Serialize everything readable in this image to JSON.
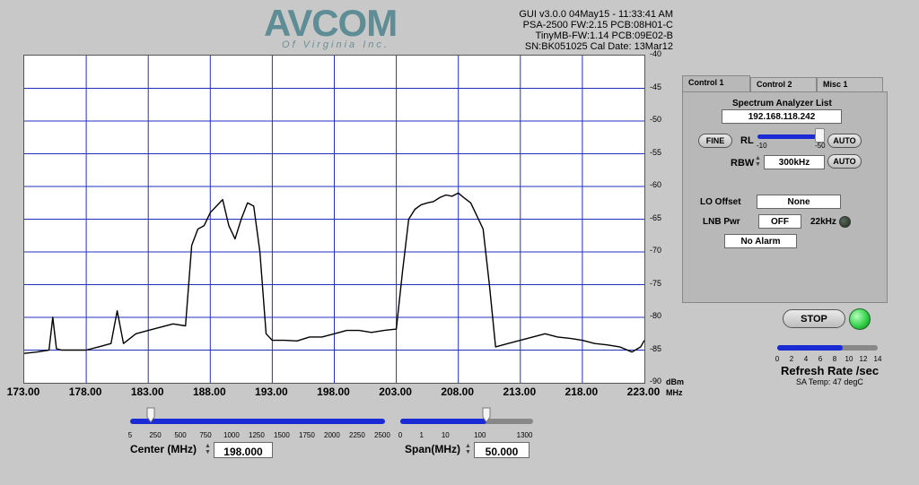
{
  "logo": {
    "brand": "AVCOM",
    "sub": "Of Virginia Inc."
  },
  "info": {
    "lines": [
      "GUI v3.0.0  04May15 - 11:33:41 AM",
      "PSA-2500 FW:2.15 PCB:08H01-C",
      "TinyMB-FW:1.14  PCB:09E02-B",
      "SN:BK051025  Cal Date: 13Mar12"
    ]
  },
  "plot": {
    "yticks": [
      "-40",
      "-45",
      "-50",
      "-55",
      "-60",
      "-65",
      "-70",
      "-75",
      "-80",
      "-85",
      "-90"
    ],
    "yunit": "dBm",
    "xticks": [
      "173.00",
      "178.00",
      "183.00",
      "188.00",
      "193.00",
      "198.00",
      "203.00",
      "208.00",
      "213.00",
      "218.00",
      "223.00"
    ],
    "xunit": "MHz"
  },
  "chart_data": {
    "type": "line",
    "xlim": [
      173,
      223
    ],
    "ylim": [
      -90,
      -40
    ],
    "grid": true,
    "x": [
      173,
      174,
      175,
      175.3,
      175.6,
      176,
      177,
      178,
      179,
      180,
      180.5,
      181,
      182,
      183,
      184,
      185,
      186,
      186.5,
      187,
      187.5,
      188,
      188.5,
      189,
      189.5,
      190,
      190.5,
      191,
      191.5,
      192,
      192.5,
      193,
      194,
      195,
      196,
      197,
      198,
      199,
      200,
      201,
      202,
      203,
      203.5,
      204,
      204.5,
      205,
      205.5,
      206,
      206.5,
      207,
      207.5,
      208,
      208.5,
      209,
      209.5,
      210,
      210.5,
      211,
      212,
      213,
      214,
      215,
      216,
      217,
      218,
      219,
      220,
      221,
      222,
      222.7,
      223
    ],
    "y": [
      -85.5,
      -85.3,
      -85,
      -80,
      -84.8,
      -85,
      -85,
      -85,
      -84.5,
      -84,
      -79,
      -84,
      -82.5,
      -82,
      -81.5,
      -81,
      -81.3,
      -69,
      -66.5,
      -66,
      -64,
      -63,
      -62,
      -66,
      -68,
      -65,
      -62.5,
      -63,
      -70,
      -82.5,
      -83.5,
      -83.5,
      -83.6,
      -83,
      -83,
      -82.5,
      -82,
      -82,
      -82.3,
      -82,
      -81.8,
      -73,
      -65,
      -63.5,
      -62.8,
      -62.5,
      -62.3,
      -61.7,
      -61.3,
      -61.5,
      -61,
      -61.8,
      -62.5,
      -64.5,
      -66.5,
      -75,
      -84.5,
      -84,
      -83.5,
      -83,
      -82.5,
      -83,
      -83.2,
      -83.5,
      -84,
      -84.2,
      -84.5,
      -85.3,
      -84.5,
      -83.5
    ]
  },
  "control": {
    "tabs": [
      "Control 1",
      "Control 2",
      "Misc 1"
    ],
    "title": "Spectrum Analyzer List",
    "ip": "192.168.118.242",
    "fine": "FINE",
    "rl": "RL",
    "rl_min": "-10",
    "rl_max": "-50",
    "auto": "AUTO",
    "rbw_label": "RBW",
    "rbw": "300kHz",
    "lo_label": "LO Offset",
    "lo": "None",
    "lnb_label": "LNB Pwr",
    "lnb": "OFF",
    "khz": "22kHz",
    "alarm": "No Alarm"
  },
  "run": {
    "stop": "STOP",
    "status_color": "#35d24a"
  },
  "refresh": {
    "label": "Refresh Rate /sec",
    "ticks": [
      "0",
      "2",
      "4",
      "6",
      "8",
      "10",
      "12",
      "14"
    ],
    "value_fraction": 0.65,
    "sa_temp": "SA Temp: 47 degC"
  },
  "center": {
    "label": "Center (MHz)",
    "value": "198.000",
    "ticks": [
      "5",
      "250",
      "500",
      "750",
      "1000",
      "1250",
      "1500",
      "1750",
      "2000",
      "2250",
      "2500"
    ],
    "value_fraction": 0.08
  },
  "span": {
    "label": "Span(MHz)",
    "value": "50.000",
    "ticks": [
      "0",
      "1",
      "10",
      "100",
      "1300"
    ],
    "value_fraction": 0.65
  },
  "colors": {
    "trace": "#000000",
    "grid": "#2230c0",
    "track": "#1a2bd6"
  }
}
